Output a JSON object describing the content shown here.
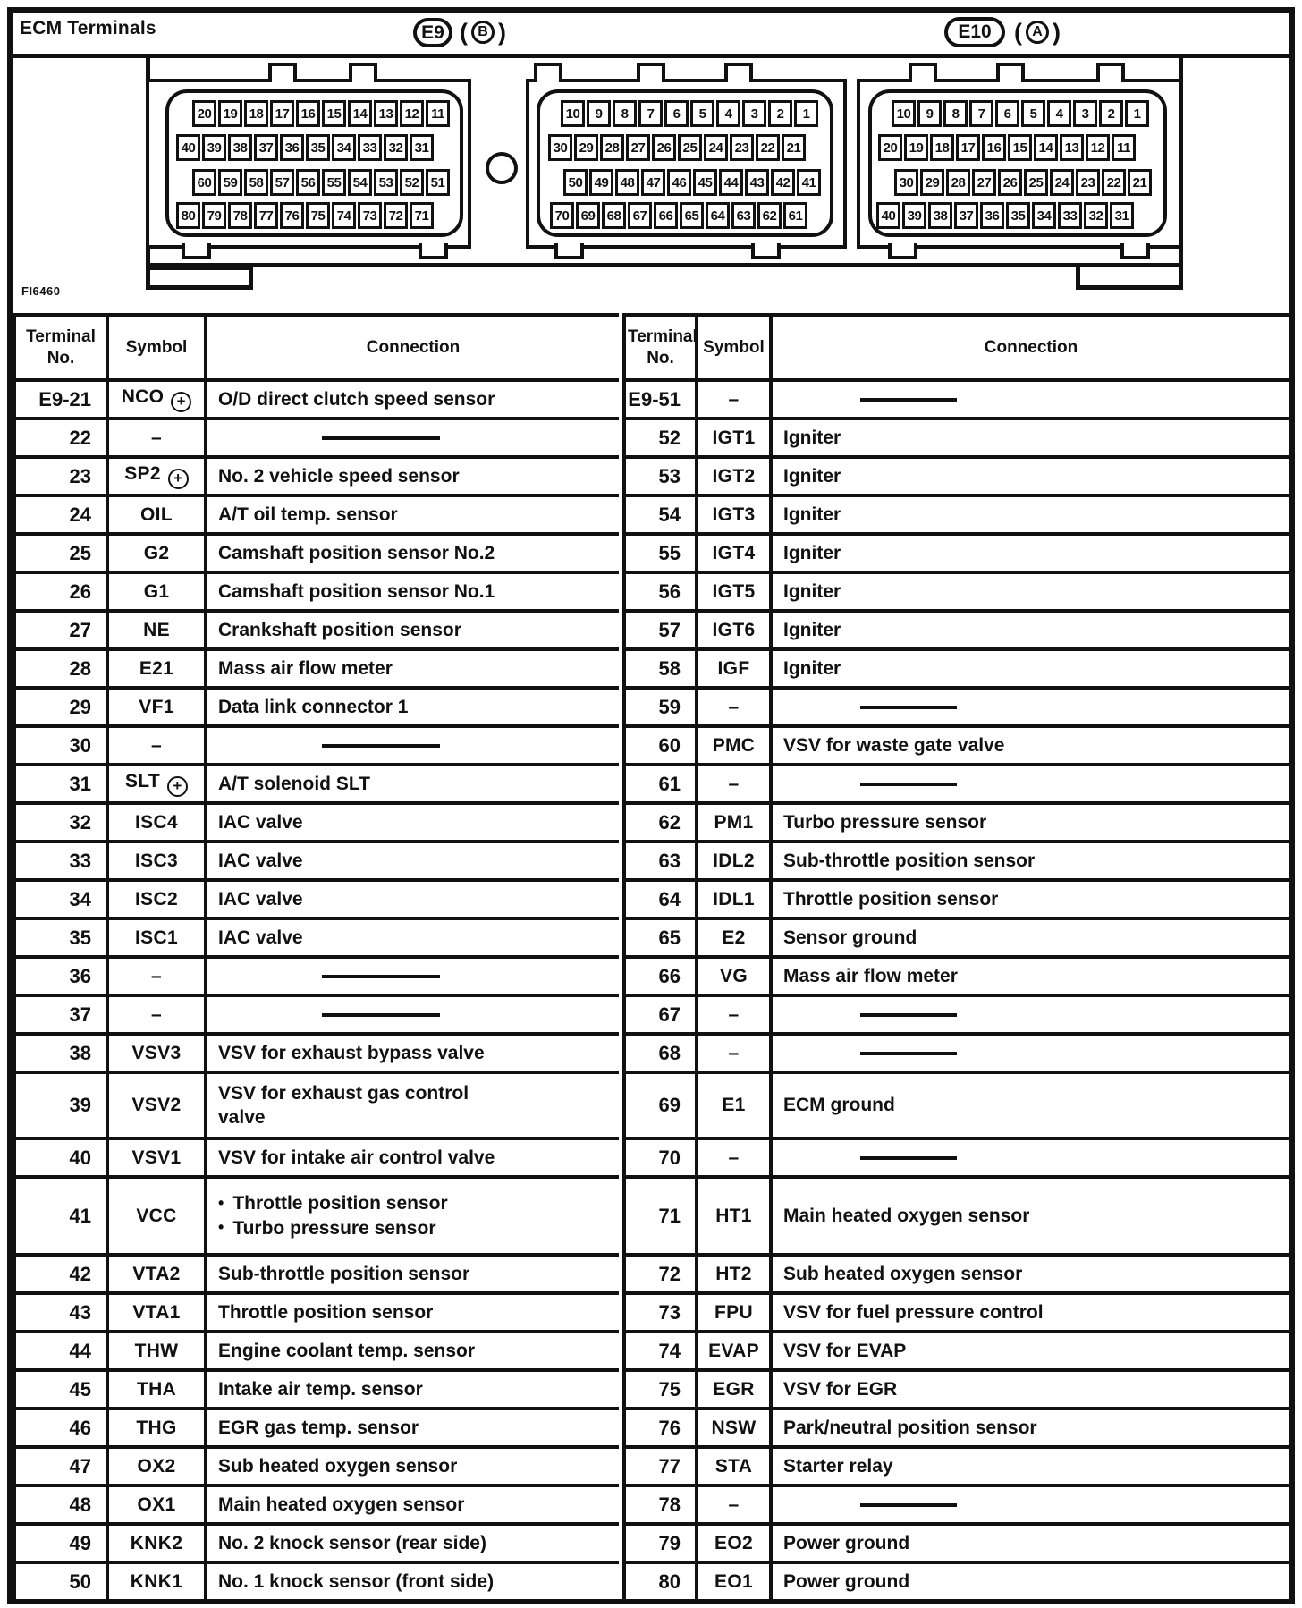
{
  "page": {
    "title": "ECM Terminals",
    "figure_code": "FI6460"
  },
  "connectors": {
    "e9_label": "E9",
    "e9_sub": "B",
    "e10_label": "E10",
    "e10_sub": "A",
    "housings": [
      {
        "name": "e9-left-half",
        "pin_rows": [
          [
            "20",
            "19",
            "18",
            "17",
            "16",
            "15",
            "14",
            "13",
            "12",
            "11"
          ],
          [
            "40",
            "39",
            "38",
            "37",
            "36",
            "35",
            "34",
            "33",
            "32",
            "31"
          ],
          [
            "60",
            "59",
            "58",
            "57",
            "56",
            "55",
            "54",
            "53",
            "52",
            "51"
          ],
          [
            "80",
            "79",
            "78",
            "77",
            "76",
            "75",
            "74",
            "73",
            "72",
            "71"
          ]
        ]
      },
      {
        "name": "e9-right-half",
        "pin_rows": [
          [
            "10",
            "9",
            "8",
            "7",
            "6",
            "5",
            "4",
            "3",
            "2",
            "1"
          ],
          [
            "30",
            "29",
            "28",
            "27",
            "26",
            "25",
            "24",
            "23",
            "22",
            "21"
          ],
          [
            "50",
            "49",
            "48",
            "47",
            "46",
            "45",
            "44",
            "43",
            "42",
            "41"
          ],
          [
            "70",
            "69",
            "68",
            "67",
            "66",
            "65",
            "64",
            "63",
            "62",
            "61"
          ]
        ]
      },
      {
        "name": "e10",
        "pin_rows": [
          [
            "10",
            "9",
            "8",
            "7",
            "6",
            "5",
            "4",
            "3",
            "2",
            "1"
          ],
          [
            "20",
            "19",
            "18",
            "17",
            "16",
            "15",
            "14",
            "13",
            "12",
            "11"
          ],
          [
            "30",
            "29",
            "28",
            "27",
            "26",
            "25",
            "24",
            "23",
            "22",
            "21"
          ],
          [
            "40",
            "39",
            "38",
            "37",
            "36",
            "35",
            "34",
            "33",
            "32",
            "31"
          ]
        ]
      }
    ]
  },
  "table": {
    "headers": [
      "Terminal No.",
      "Symbol",
      "Connection"
    ],
    "left_rows": [
      {
        "no": "E9-21",
        "symbol": "NCO",
        "plus": true,
        "connection": "O/D direct clutch speed sensor"
      },
      {
        "no": "22",
        "symbol": "–"
      },
      {
        "no": "23",
        "symbol": "SP2",
        "plus": true,
        "connection": "No. 2 vehicle speed sensor"
      },
      {
        "no": "24",
        "symbol": "OIL",
        "connection": "A/T oil temp. sensor"
      },
      {
        "no": "25",
        "symbol": "G2",
        "connection": "Camshaft position sensor No.2"
      },
      {
        "no": "26",
        "symbol": "G1",
        "connection": "Camshaft position sensor No.1"
      },
      {
        "no": "27",
        "symbol": "NE",
        "connection": "Crankshaft position sensor"
      },
      {
        "no": "28",
        "symbol": "E21",
        "connection": "Mass air flow meter"
      },
      {
        "no": "29",
        "symbol": "VF1",
        "connection": "Data link connector 1"
      },
      {
        "no": "30",
        "symbol": "–"
      },
      {
        "no": "31",
        "symbol": "SLT",
        "plus": true,
        "connection": "A/T solenoid SLT"
      },
      {
        "no": "32",
        "symbol": "ISC4",
        "connection": "IAC valve"
      },
      {
        "no": "33",
        "symbol": "ISC3",
        "connection": "IAC valve"
      },
      {
        "no": "34",
        "symbol": "ISC2",
        "connection": "IAC valve"
      },
      {
        "no": "35",
        "symbol": "ISC1",
        "connection": "IAC valve"
      },
      {
        "no": "36",
        "symbol": "–"
      },
      {
        "no": "37",
        "symbol": "–"
      },
      {
        "no": "38",
        "symbol": "VSV3",
        "connection": "VSV for exhaust bypass valve"
      },
      {
        "no": "39",
        "symbol": "VSV2",
        "connection_lines": [
          "VSV for exhaust gas control",
          "valve"
        ]
      },
      {
        "no": "40",
        "symbol": "VSV1",
        "connection": "VSV for intake air control valve"
      },
      {
        "no": "41",
        "symbol": "VCC",
        "bullets": [
          "Throttle position sensor",
          "Turbo pressure sensor"
        ]
      },
      {
        "no": "42",
        "symbol": "VTA2",
        "connection": "Sub-throttle position sensor"
      },
      {
        "no": "43",
        "symbol": "VTA1",
        "connection": "Throttle position sensor"
      },
      {
        "no": "44",
        "symbol": "THW",
        "connection": "Engine coolant temp. sensor"
      },
      {
        "no": "45",
        "symbol": "THA",
        "connection": "Intake air temp. sensor"
      },
      {
        "no": "46",
        "symbol": "THG",
        "connection": "EGR gas temp. sensor"
      },
      {
        "no": "47",
        "symbol": "OX2",
        "connection": "Sub heated oxygen sensor"
      },
      {
        "no": "48",
        "symbol": "OX1",
        "connection": "Main heated oxygen sensor"
      },
      {
        "no": "49",
        "symbol": "KNK2",
        "connection": "No. 2 knock sensor (rear side)"
      },
      {
        "no": "50",
        "symbol": "KNK1",
        "connection": "No. 1 knock sensor (front side)"
      }
    ],
    "right_rows": [
      {
        "no": "E9-51",
        "symbol": "–"
      },
      {
        "no": "52",
        "symbol": "IGT1",
        "connection": "Igniter"
      },
      {
        "no": "53",
        "symbol": "IGT2",
        "connection": "Igniter"
      },
      {
        "no": "54",
        "symbol": "IGT3",
        "connection": "Igniter"
      },
      {
        "no": "55",
        "symbol": "IGT4",
        "connection": "Igniter"
      },
      {
        "no": "56",
        "symbol": "IGT5",
        "connection": "Igniter"
      },
      {
        "no": "57",
        "symbol": "IGT6",
        "connection": "Igniter"
      },
      {
        "no": "58",
        "symbol": "IGF",
        "connection": "Igniter"
      },
      {
        "no": "59",
        "symbol": "–"
      },
      {
        "no": "60",
        "symbol": "PMC",
        "connection": "VSV for waste gate valve"
      },
      {
        "no": "61",
        "symbol": "–"
      },
      {
        "no": "62",
        "symbol": "PM1",
        "connection": "Turbo pressure sensor"
      },
      {
        "no": "63",
        "symbol": "IDL2",
        "connection": "Sub-throttle position sensor"
      },
      {
        "no": "64",
        "symbol": "IDL1",
        "connection": "Throttle position sensor"
      },
      {
        "no": "65",
        "symbol": "E2",
        "connection": "Sensor ground"
      },
      {
        "no": "66",
        "symbol": "VG",
        "connection": "Mass air flow meter"
      },
      {
        "no": "67",
        "symbol": "–"
      },
      {
        "no": "68",
        "symbol": "–"
      },
      {
        "no": "69",
        "symbol": "E1",
        "connection": "ECM ground"
      },
      {
        "no": "70",
        "symbol": "–"
      },
      {
        "no": "71",
        "symbol": "HT1",
        "connection": "Main heated oxygen sensor"
      },
      {
        "no": "72",
        "symbol": "HT2",
        "connection": "Sub heated oxygen sensor"
      },
      {
        "no": "73",
        "symbol": "FPU",
        "connection": "VSV for fuel pressure control"
      },
      {
        "no": "74",
        "symbol": "EVAP",
        "connection": "VSV for EVAP"
      },
      {
        "no": "75",
        "symbol": "EGR",
        "connection": "VSV for EGR"
      },
      {
        "no": "76",
        "symbol": "NSW",
        "connection": "Park/neutral position sensor"
      },
      {
        "no": "77",
        "symbol": "STA",
        "connection": "Starter relay"
      },
      {
        "no": "78",
        "symbol": "–"
      },
      {
        "no": "79",
        "symbol": "EO2",
        "connection": "Power ground"
      },
      {
        "no": "80",
        "symbol": "EO1",
        "connection": "Power ground"
      }
    ]
  }
}
